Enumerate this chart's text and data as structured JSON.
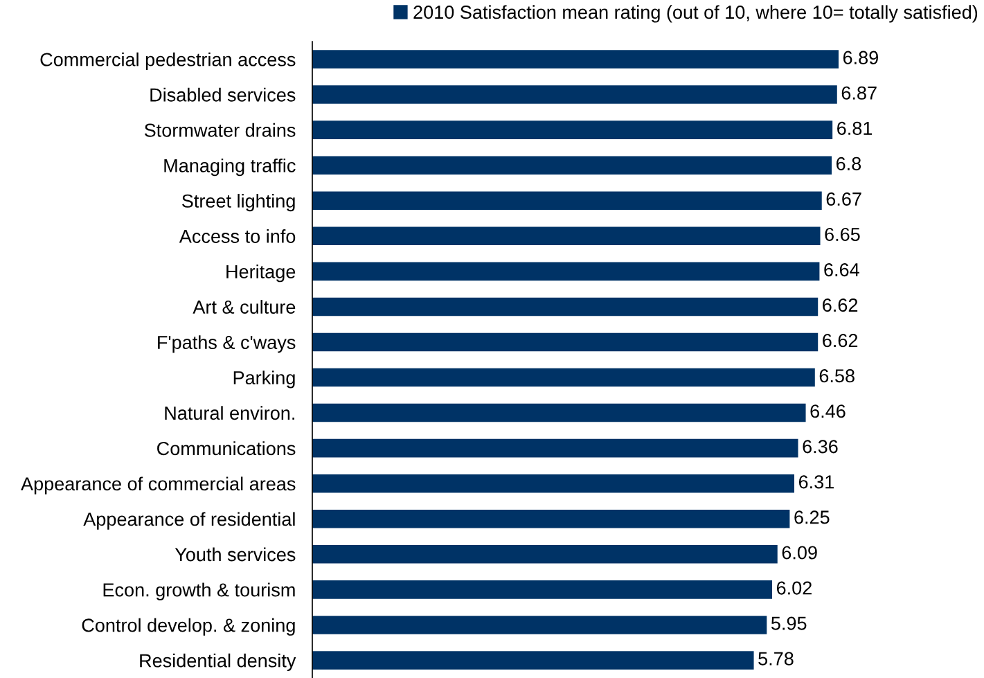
{
  "chart_data": {
    "type": "bar",
    "orientation": "horizontal",
    "categories": [
      "Commercial pedestrian access",
      "Disabled services",
      "Stormwater drains",
      "Managing traffic",
      "Street lighting",
      "Access to info",
      "Heritage",
      "Art & culture",
      "F'paths & c'ways",
      "Parking",
      "Natural environ.",
      "Communications",
      "Appearance of commercial areas",
      "Appearance of residential",
      "Youth services",
      "Econ. growth & tourism",
      "Control develop. & zoning",
      "Residential density"
    ],
    "series": [
      {
        "name": "2010 Satisfaction mean rating (out of 10, where 10= totally satisfied)",
        "color": "#003366",
        "values": [
          6.89,
          6.87,
          6.81,
          6.8,
          6.67,
          6.65,
          6.64,
          6.62,
          6.62,
          6.58,
          6.46,
          6.36,
          6.31,
          6.25,
          6.09,
          6.02,
          5.95,
          5.78
        ]
      }
    ],
    "data_labels": true,
    "legend": "top right",
    "grid": false,
    "tick_labels": "y"
  }
}
